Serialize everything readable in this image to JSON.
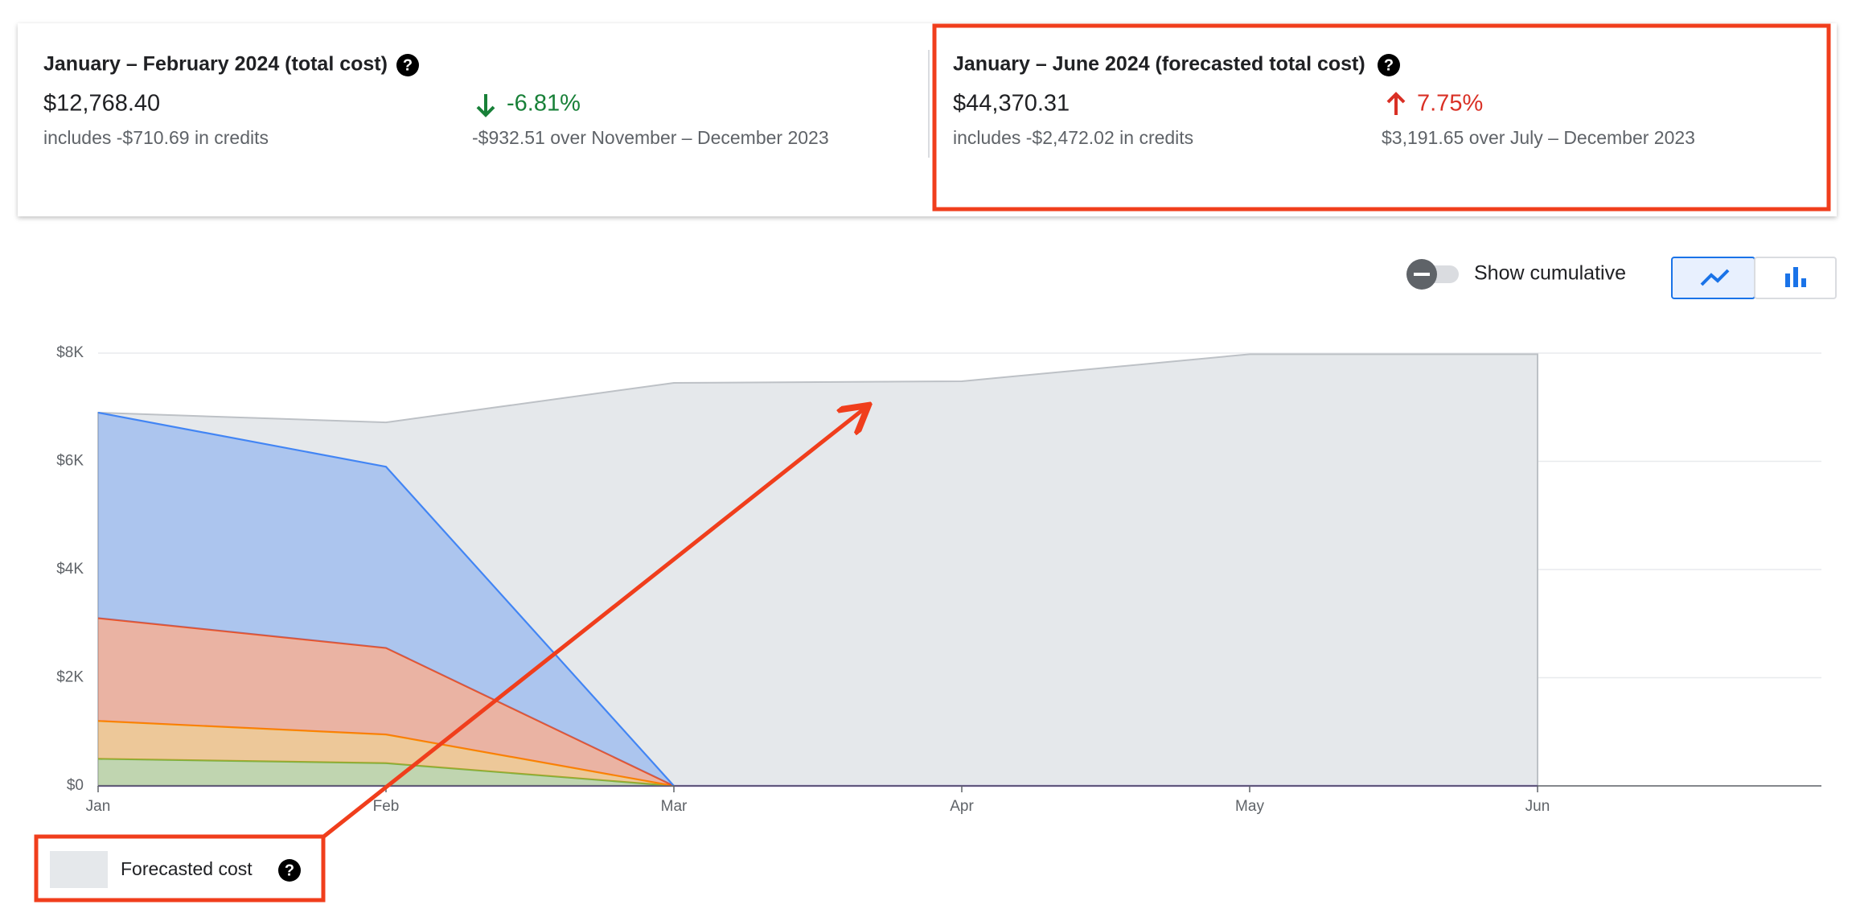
{
  "cards": [
    {
      "title": "January – February 2024 (total cost)",
      "amount": "$12,768.40",
      "credits": "includes -$710.69 in credits",
      "change": "-6.81%",
      "comparison": "-$932.51 over November – December 2023"
    },
    {
      "title": "January – June 2024 (forecasted total cost)",
      "amount": "$44,370.31",
      "credits": "includes -$2,472.02 in credits",
      "change": "7.75%",
      "comparison": "$3,191.65 over July – December 2023"
    }
  ],
  "toggle": {
    "label": "Show cumulative"
  },
  "chart_data": {
    "type": "stacked-area",
    "categories": [
      "Jan",
      "Feb",
      "Mar",
      "Apr",
      "May",
      "Jun"
    ],
    "forecast": {
      "name": "Forecasted cost",
      "color": "#e5e8eb",
      "values": [
        6900,
        6720,
        7450,
        7480,
        7980,
        7980
      ]
    },
    "series": [
      {
        "color": "#673ab7",
        "values": [
          0,
          0,
          0,
          0,
          0,
          0
        ]
      },
      {
        "color": "#7cb342",
        "values": [
          500,
          420,
          0,
          null,
          null,
          null
        ]
      },
      {
        "color": "#fb8c00",
        "values": [
          700,
          530,
          0,
          null,
          null,
          null
        ]
      },
      {
        "color": "#f4511e",
        "values": [
          1900,
          1600,
          0,
          null,
          null,
          null
        ]
      },
      {
        "color": "#4285f4",
        "values": [
          3800,
          3350,
          0,
          null,
          null,
          null
        ]
      }
    ],
    "ylim": [
      0,
      8000
    ],
    "yticks": [
      {
        "value": 0,
        "label": "$0"
      },
      {
        "value": 2000,
        "label": "$2K"
      },
      {
        "value": 4000,
        "label": "$4K"
      },
      {
        "value": 6000,
        "label": "$6K"
      },
      {
        "value": 8000,
        "label": "$8K"
      }
    ],
    "grid": true
  }
}
